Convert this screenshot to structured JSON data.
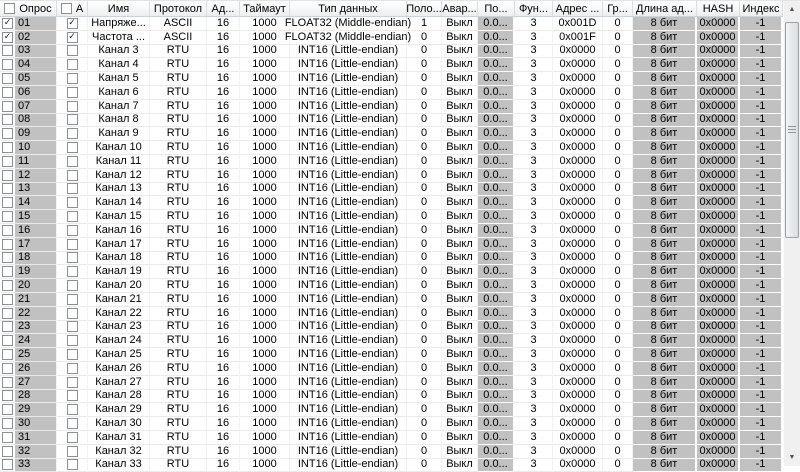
{
  "table": {
    "columns": [
      {
        "key": "opros",
        "label": "Опрос",
        "width": 57,
        "checkbox": true,
        "checked": false
      },
      {
        "key": "a",
        "label": "А",
        "width": 31,
        "checkbox": true,
        "checked": false
      },
      {
        "key": "imya",
        "label": "Имя",
        "width": 62
      },
      {
        "key": "protokol",
        "label": "Протокол",
        "width": 57
      },
      {
        "key": "ad",
        "label": "Ад...",
        "width": 33
      },
      {
        "key": "taymaut",
        "label": "Таймаут",
        "width": 50
      },
      {
        "key": "tip-dannyh",
        "label": "Тип данных",
        "width": 117
      },
      {
        "key": "polo",
        "label": "Поло...",
        "width": 35
      },
      {
        "key": "avar",
        "label": "Авар...",
        "width": 36
      },
      {
        "key": "po",
        "label": "По...",
        "width": 37,
        "gray": true
      },
      {
        "key": "fun",
        "label": "Фун...",
        "width": 38
      },
      {
        "key": "adres",
        "label": "Адрес ...",
        "width": 50
      },
      {
        "key": "gr",
        "label": "Гр...",
        "width": 30
      },
      {
        "key": "dlina-ad",
        "label": "Длина ад...",
        "width": 64,
        "gray": true
      },
      {
        "key": "hash",
        "label": "HASH",
        "width": 43,
        "gray": true
      },
      {
        "key": "indeks",
        "label": "Индекс",
        "width": 43,
        "gray": true
      }
    ],
    "rows": [
      {
        "num": "01",
        "opros_checked": true,
        "a_checked": true,
        "cells": [
          "Напряже...",
          "ASCII",
          "16",
          "1000",
          "FLOAT32 (Middle-endian)",
          "1",
          "Выкл",
          "0.0...",
          "3",
          "0x001D",
          "0",
          "8 бит",
          "0x0000",
          "-1"
        ]
      },
      {
        "num": "02",
        "opros_checked": true,
        "a_checked": true,
        "cells": [
          "Частота ...",
          "ASCII",
          "16",
          "1000",
          "FLOAT32 (Middle-endian)",
          "0",
          "Выкл",
          "0.0...",
          "3",
          "0x001F",
          "0",
          "8 бит",
          "0x0000",
          "-1"
        ]
      },
      {
        "num": "03",
        "opros_checked": false,
        "a_checked": false,
        "cells": [
          "Канал 3",
          "RTU",
          "16",
          "1000",
          "INT16 (Little-endian)",
          "0",
          "Выкл",
          "0.0...",
          "3",
          "0x0000",
          "0",
          "8 бит",
          "0x0000",
          "-1"
        ]
      },
      {
        "num": "04",
        "opros_checked": false,
        "a_checked": false,
        "cells": [
          "Канал 4",
          "RTU",
          "16",
          "1000",
          "INT16 (Little-endian)",
          "0",
          "Выкл",
          "0.0...",
          "3",
          "0x0000",
          "0",
          "8 бит",
          "0x0000",
          "-1"
        ]
      },
      {
        "num": "05",
        "opros_checked": false,
        "a_checked": false,
        "cells": [
          "Канал 5",
          "RTU",
          "16",
          "1000",
          "INT16 (Little-endian)",
          "0",
          "Выкл",
          "0.0...",
          "3",
          "0x0000",
          "0",
          "8 бит",
          "0x0000",
          "-1"
        ]
      },
      {
        "num": "06",
        "opros_checked": false,
        "a_checked": false,
        "cells": [
          "Канал 6",
          "RTU",
          "16",
          "1000",
          "INT16 (Little-endian)",
          "0",
          "Выкл",
          "0.0...",
          "3",
          "0x0000",
          "0",
          "8 бит",
          "0x0000",
          "-1"
        ]
      },
      {
        "num": "07",
        "opros_checked": false,
        "a_checked": false,
        "cells": [
          "Канал 7",
          "RTU",
          "16",
          "1000",
          "INT16 (Little-endian)",
          "0",
          "Выкл",
          "0.0...",
          "3",
          "0x0000",
          "0",
          "8 бит",
          "0x0000",
          "-1"
        ]
      },
      {
        "num": "08",
        "opros_checked": false,
        "a_checked": false,
        "cells": [
          "Канал 8",
          "RTU",
          "16",
          "1000",
          "INT16 (Little-endian)",
          "0",
          "Выкл",
          "0.0...",
          "3",
          "0x0000",
          "0",
          "8 бит",
          "0x0000",
          "-1"
        ]
      },
      {
        "num": "09",
        "opros_checked": false,
        "a_checked": false,
        "cells": [
          "Канал 9",
          "RTU",
          "16",
          "1000",
          "INT16 (Little-endian)",
          "0",
          "Выкл",
          "0.0...",
          "3",
          "0x0000",
          "0",
          "8 бит",
          "0x0000",
          "-1"
        ]
      },
      {
        "num": "10",
        "opros_checked": false,
        "a_checked": false,
        "cells": [
          "Канал 10",
          "RTU",
          "16",
          "1000",
          "INT16 (Little-endian)",
          "0",
          "Выкл",
          "0.0...",
          "3",
          "0x0000",
          "0",
          "8 бит",
          "0x0000",
          "-1"
        ]
      },
      {
        "num": "11",
        "opros_checked": false,
        "a_checked": false,
        "cells": [
          "Канал 11",
          "RTU",
          "16",
          "1000",
          "INT16 (Little-endian)",
          "0",
          "Выкл",
          "0.0...",
          "3",
          "0x0000",
          "0",
          "8 бит",
          "0x0000",
          "-1"
        ]
      },
      {
        "num": "12",
        "opros_checked": false,
        "a_checked": false,
        "cells": [
          "Канал 12",
          "RTU",
          "16",
          "1000",
          "INT16 (Little-endian)",
          "0",
          "Выкл",
          "0.0...",
          "3",
          "0x0000",
          "0",
          "8 бит",
          "0x0000",
          "-1"
        ]
      },
      {
        "num": "13",
        "opros_checked": false,
        "a_checked": false,
        "cells": [
          "Канал 13",
          "RTU",
          "16",
          "1000",
          "INT16 (Little-endian)",
          "0",
          "Выкл",
          "0.0...",
          "3",
          "0x0000",
          "0",
          "8 бит",
          "0x0000",
          "-1"
        ]
      },
      {
        "num": "14",
        "opros_checked": false,
        "a_checked": false,
        "cells": [
          "Канал 14",
          "RTU",
          "16",
          "1000",
          "INT16 (Little-endian)",
          "0",
          "Выкл",
          "0.0...",
          "3",
          "0x0000",
          "0",
          "8 бит",
          "0x0000",
          "-1"
        ]
      },
      {
        "num": "15",
        "opros_checked": false,
        "a_checked": false,
        "cells": [
          "Канал 15",
          "RTU",
          "16",
          "1000",
          "INT16 (Little-endian)",
          "0",
          "Выкл",
          "0.0...",
          "3",
          "0x0000",
          "0",
          "8 бит",
          "0x0000",
          "-1"
        ]
      },
      {
        "num": "16",
        "opros_checked": false,
        "a_checked": false,
        "cells": [
          "Канал 16",
          "RTU",
          "16",
          "1000",
          "INT16 (Little-endian)",
          "0",
          "Выкл",
          "0.0...",
          "3",
          "0x0000",
          "0",
          "8 бит",
          "0x0000",
          "-1"
        ]
      },
      {
        "num": "17",
        "opros_checked": false,
        "a_checked": false,
        "cells": [
          "Канал 17",
          "RTU",
          "16",
          "1000",
          "INT16 (Little-endian)",
          "0",
          "Выкл",
          "0.0...",
          "3",
          "0x0000",
          "0",
          "8 бит",
          "0x0000",
          "-1"
        ]
      },
      {
        "num": "18",
        "opros_checked": false,
        "a_checked": false,
        "cells": [
          "Канал 18",
          "RTU",
          "16",
          "1000",
          "INT16 (Little-endian)",
          "0",
          "Выкл",
          "0.0...",
          "3",
          "0x0000",
          "0",
          "8 бит",
          "0x0000",
          "-1"
        ]
      },
      {
        "num": "19",
        "opros_checked": false,
        "a_checked": false,
        "cells": [
          "Канал 19",
          "RTU",
          "16",
          "1000",
          "INT16 (Little-endian)",
          "0",
          "Выкл",
          "0.0...",
          "3",
          "0x0000",
          "0",
          "8 бит",
          "0x0000",
          "-1"
        ]
      },
      {
        "num": "20",
        "opros_checked": false,
        "a_checked": false,
        "cells": [
          "Канал 20",
          "RTU",
          "16",
          "1000",
          "INT16 (Little-endian)",
          "0",
          "Выкл",
          "0.0...",
          "3",
          "0x0000",
          "0",
          "8 бит",
          "0x0000",
          "-1"
        ]
      },
      {
        "num": "21",
        "opros_checked": false,
        "a_checked": false,
        "cells": [
          "Канал 21",
          "RTU",
          "16",
          "1000",
          "INT16 (Little-endian)",
          "0",
          "Выкл",
          "0.0...",
          "3",
          "0x0000",
          "0",
          "8 бит",
          "0x0000",
          "-1"
        ]
      },
      {
        "num": "22",
        "opros_checked": false,
        "a_checked": false,
        "cells": [
          "Канал 22",
          "RTU",
          "16",
          "1000",
          "INT16 (Little-endian)",
          "0",
          "Выкл",
          "0.0...",
          "3",
          "0x0000",
          "0",
          "8 бит",
          "0x0000",
          "-1"
        ]
      },
      {
        "num": "23",
        "opros_checked": false,
        "a_checked": false,
        "cells": [
          "Канал 23",
          "RTU",
          "16",
          "1000",
          "INT16 (Little-endian)",
          "0",
          "Выкл",
          "0.0...",
          "3",
          "0x0000",
          "0",
          "8 бит",
          "0x0000",
          "-1"
        ]
      },
      {
        "num": "24",
        "opros_checked": false,
        "a_checked": false,
        "cells": [
          "Канал 24",
          "RTU",
          "16",
          "1000",
          "INT16 (Little-endian)",
          "0",
          "Выкл",
          "0.0...",
          "3",
          "0x0000",
          "0",
          "8 бит",
          "0x0000",
          "-1"
        ]
      },
      {
        "num": "25",
        "opros_checked": false,
        "a_checked": false,
        "cells": [
          "Канал 25",
          "RTU",
          "16",
          "1000",
          "INT16 (Little-endian)",
          "0",
          "Выкл",
          "0.0...",
          "3",
          "0x0000",
          "0",
          "8 бит",
          "0x0000",
          "-1"
        ]
      },
      {
        "num": "26",
        "opros_checked": false,
        "a_checked": false,
        "cells": [
          "Канал 26",
          "RTU",
          "16",
          "1000",
          "INT16 (Little-endian)",
          "0",
          "Выкл",
          "0.0...",
          "3",
          "0x0000",
          "0",
          "8 бит",
          "0x0000",
          "-1"
        ]
      },
      {
        "num": "27",
        "opros_checked": false,
        "a_checked": false,
        "cells": [
          "Канал 27",
          "RTU",
          "16",
          "1000",
          "INT16 (Little-endian)",
          "0",
          "Выкл",
          "0.0...",
          "3",
          "0x0000",
          "0",
          "8 бит",
          "0x0000",
          "-1"
        ]
      },
      {
        "num": "28",
        "opros_checked": false,
        "a_checked": false,
        "cells": [
          "Канал 28",
          "RTU",
          "16",
          "1000",
          "INT16 (Little-endian)",
          "0",
          "Выкл",
          "0.0...",
          "3",
          "0x0000",
          "0",
          "8 бит",
          "0x0000",
          "-1"
        ]
      },
      {
        "num": "29",
        "opros_checked": false,
        "a_checked": false,
        "cells": [
          "Канал 29",
          "RTU",
          "16",
          "1000",
          "INT16 (Little-endian)",
          "0",
          "Выкл",
          "0.0...",
          "3",
          "0x0000",
          "0",
          "8 бит",
          "0x0000",
          "-1"
        ]
      },
      {
        "num": "30",
        "opros_checked": false,
        "a_checked": false,
        "cells": [
          "Канал 30",
          "RTU",
          "16",
          "1000",
          "INT16 (Little-endian)",
          "0",
          "Выкл",
          "0.0...",
          "3",
          "0x0000",
          "0",
          "8 бит",
          "0x0000",
          "-1"
        ]
      },
      {
        "num": "31",
        "opros_checked": false,
        "a_checked": false,
        "cells": [
          "Канал 31",
          "RTU",
          "16",
          "1000",
          "INT16 (Little-endian)",
          "0",
          "Выкл",
          "0.0...",
          "3",
          "0x0000",
          "0",
          "8 бит",
          "0x0000",
          "-1"
        ]
      },
      {
        "num": "32",
        "opros_checked": false,
        "a_checked": false,
        "cells": [
          "Канал 32",
          "RTU",
          "16",
          "1000",
          "INT16 (Little-endian)",
          "0",
          "Выкл",
          "0.0...",
          "3",
          "0x0000",
          "0",
          "8 бит",
          "0x0000",
          "-1"
        ]
      },
      {
        "num": "33",
        "opros_checked": false,
        "a_checked": false,
        "cells": [
          "Канал 33",
          "RTU",
          "16",
          "1000",
          "INT16 (Little-endian)",
          "0",
          "Выкл",
          "0.0...",
          "3",
          "0x0000",
          "0",
          "8 бит",
          "0x0000",
          "-1"
        ]
      }
    ]
  },
  "scrollbar": {
    "up_icon": "▲",
    "down_icon": "▼"
  }
}
